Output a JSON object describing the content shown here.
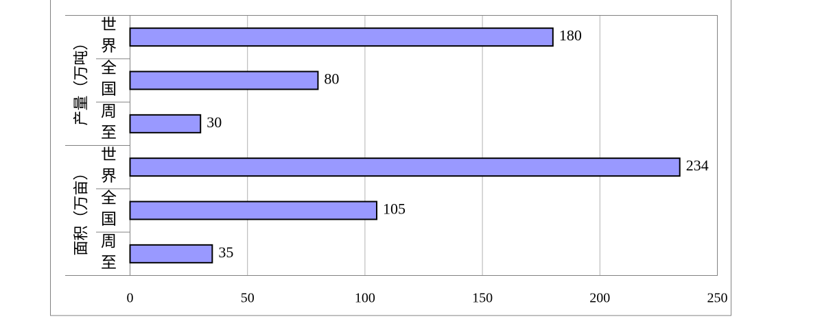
{
  "chart_data": {
    "type": "bar",
    "orientation": "horizontal",
    "color": "#9999ff",
    "groups": [
      {
        "label": "产量（万吨）",
        "categories": [
          "世界",
          "全国",
          "周至"
        ],
        "values": [
          180,
          80,
          30
        ]
      },
      {
        "label": "面积（万亩）",
        "categories": [
          "世界",
          "全国",
          "周至"
        ],
        "values": [
          234,
          105,
          35
        ]
      }
    ],
    "xlim": [
      0,
      250
    ],
    "xticks": [
      0,
      50,
      100,
      150,
      200,
      250
    ],
    "grid": true
  }
}
